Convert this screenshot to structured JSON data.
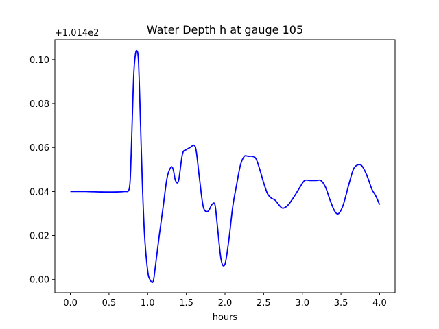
{
  "chart_data": {
    "type": "line",
    "title": "Water Depth h at gauge 105",
    "xlabel": "hours",
    "ylabel": "",
    "y_offset_text": "+1.014e2",
    "xlim": [
      -0.2,
      4.2
    ],
    "ylim": [
      -0.006,
      0.109
    ],
    "xticks": [
      0.0,
      0.5,
      1.0,
      1.5,
      2.0,
      2.5,
      3.0,
      3.5,
      4.0
    ],
    "xtick_labels": [
      "0.0",
      "0.5",
      "1.0",
      "1.5",
      "2.0",
      "2.5",
      "3.0",
      "3.5",
      "4.0"
    ],
    "yticks": [
      0.0,
      0.02,
      0.04,
      0.06,
      0.08,
      0.1
    ],
    "ytick_labels": [
      "0.00",
      "0.02",
      "0.04",
      "0.06",
      "0.08",
      "0.10"
    ],
    "grid": false,
    "series": [
      {
        "color": "#0000ff",
        "x": [
          0.0,
          0.2,
          0.4,
          0.6,
          0.7,
          0.76,
          0.78,
          0.8,
          0.82,
          0.84,
          0.86,
          0.88,
          0.9,
          0.93,
          0.96,
          1.0,
          1.03,
          1.07,
          1.1,
          1.15,
          1.2,
          1.25,
          1.3,
          1.33,
          1.36,
          1.4,
          1.45,
          1.5,
          1.55,
          1.6,
          1.63,
          1.67,
          1.72,
          1.78,
          1.83,
          1.87,
          1.9,
          1.95,
          2.0,
          2.05,
          2.1,
          2.15,
          2.2,
          2.25,
          2.3,
          2.35,
          2.4,
          2.45,
          2.5,
          2.55,
          2.6,
          2.65,
          2.72,
          2.76,
          2.82,
          2.9,
          2.97,
          3.03,
          3.1,
          3.18,
          3.24,
          3.3,
          3.36,
          3.42,
          3.47,
          3.53,
          3.6,
          3.66,
          3.71,
          3.76,
          3.8,
          3.85,
          3.9,
          3.95,
          4.0
        ],
        "y": [
          0.04,
          0.04,
          0.0398,
          0.0398,
          0.04,
          0.041,
          0.05,
          0.072,
          0.093,
          0.102,
          0.104,
          0.1,
          0.08,
          0.045,
          0.02,
          0.004,
          0.0,
          -0.001,
          0.006,
          0.02,
          0.033,
          0.046,
          0.051,
          0.05,
          0.045,
          0.045,
          0.057,
          0.059,
          0.06,
          0.061,
          0.058,
          0.046,
          0.033,
          0.031,
          0.034,
          0.034,
          0.025,
          0.009,
          0.007,
          0.018,
          0.033,
          0.043,
          0.052,
          0.056,
          0.056,
          0.056,
          0.055,
          0.05,
          0.044,
          0.039,
          0.037,
          0.036,
          0.033,
          0.0325,
          0.034,
          0.038,
          0.042,
          0.045,
          0.045,
          0.045,
          0.045,
          0.042,
          0.036,
          0.031,
          0.03,
          0.034,
          0.043,
          0.05,
          0.052,
          0.052,
          0.05,
          0.046,
          0.041,
          0.038,
          0.034
        ]
      }
    ]
  }
}
